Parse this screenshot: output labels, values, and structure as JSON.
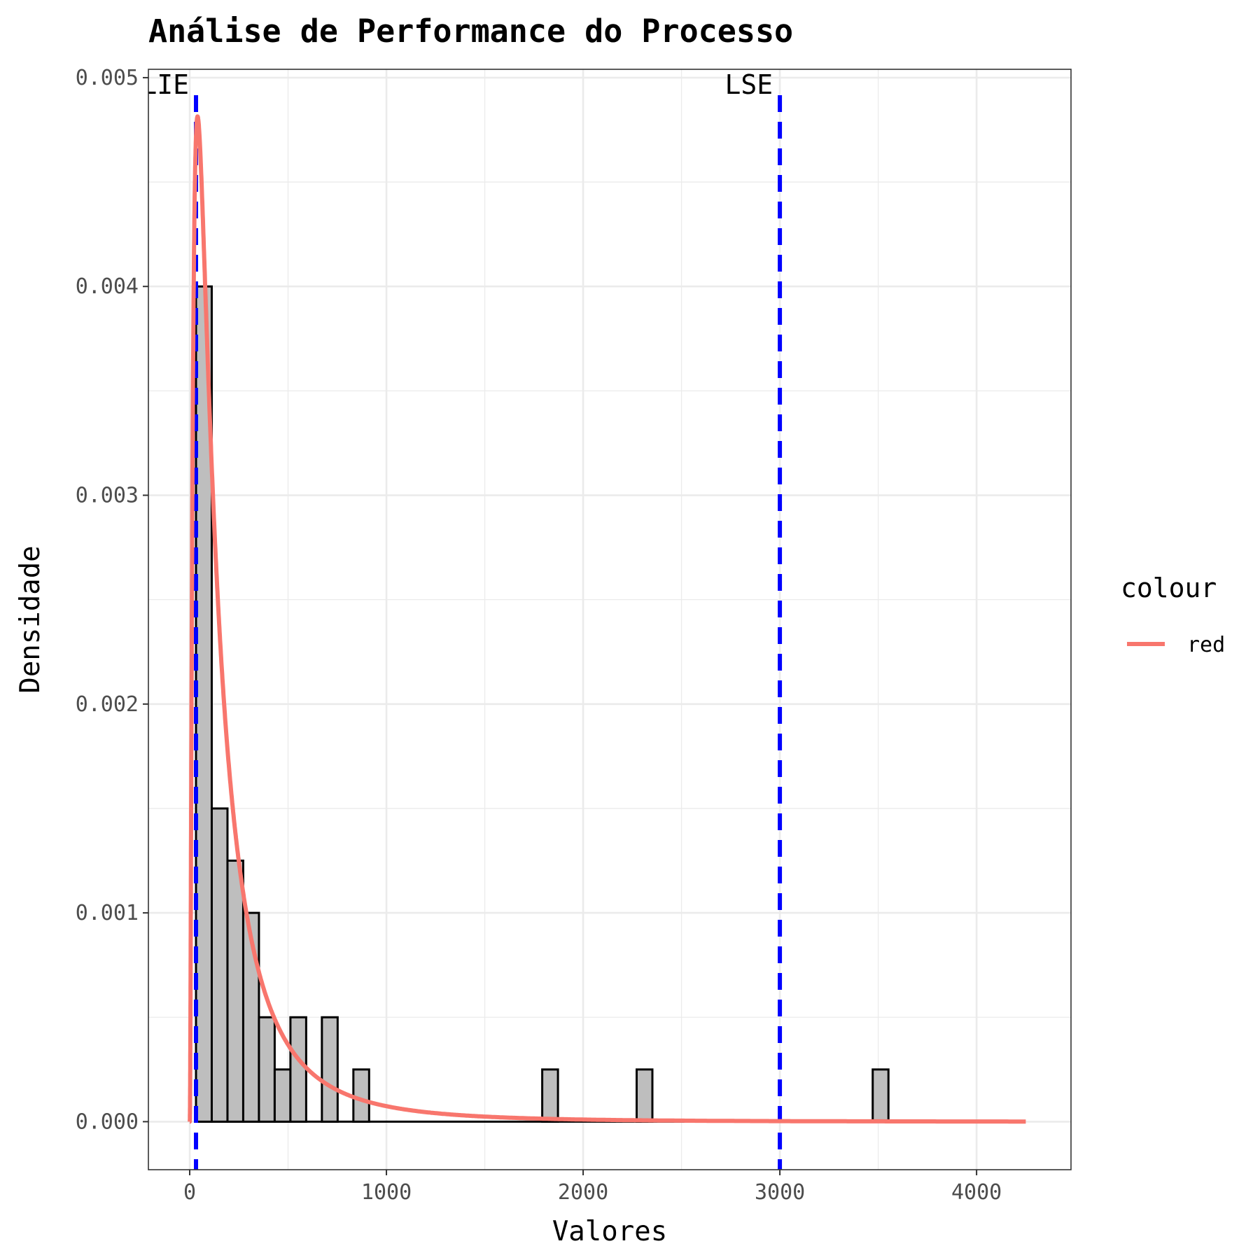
{
  "chart_data": {
    "type": "bar",
    "title": "Análise de Performance do Processo",
    "xlabel": "Valores",
    "ylabel": "Densidade",
    "xlim": [
      -210,
      4480
    ],
    "ylim": [
      -0.00023,
      0.00504
    ],
    "x_ticks": [
      0,
      1000,
      2000,
      3000,
      4000
    ],
    "x_tick_labels": [
      "0",
      "1000",
      "2000",
      "3000",
      "4000"
    ],
    "y_ticks": [
      0,
      0.001,
      0.002,
      0.003,
      0.004,
      0.005
    ],
    "y_tick_labels": [
      "0.000",
      "0.001",
      "0.002",
      "0.003",
      "0.004",
      "0.005"
    ],
    "grid": true,
    "histogram": {
      "binwidth": 80,
      "bins": [
        {
          "start": 32,
          "end": 112,
          "density": 0.004
        },
        {
          "start": 112,
          "end": 192,
          "density": 0.0015
        },
        {
          "start": 192,
          "end": 272,
          "density": 0.00125
        },
        {
          "start": 272,
          "end": 352,
          "density": 0.001
        },
        {
          "start": 352,
          "end": 432,
          "density": 0.0005
        },
        {
          "start": 432,
          "end": 512,
          "density": 0.00025
        },
        {
          "start": 512,
          "end": 592,
          "density": 0.0005
        },
        {
          "start": 672,
          "end": 752,
          "density": 0.0005
        },
        {
          "start": 832,
          "end": 912,
          "density": 0.00025
        },
        {
          "start": 1792,
          "end": 1872,
          "density": 0.00025
        },
        {
          "start": 2272,
          "end": 2352,
          "density": 0.00025
        },
        {
          "start": 3472,
          "end": 3552,
          "density": 0.00025
        }
      ],
      "baseline_range": [
        32,
        3552
      ],
      "fill": "#BEBEBE",
      "stroke": "#000000"
    },
    "density_curve": {
      "distribution": "lognormal",
      "meanlog": 4.93,
      "sdlog": 1.115,
      "x_range": [
        0,
        4250
      ],
      "color": "#F8766D",
      "legend_name": "red"
    },
    "spec_lines": [
      {
        "label": "LIE",
        "value": 32,
        "color": "#0000FF"
      },
      {
        "label": "LSE",
        "value": 3000,
        "color": "#0000FF"
      }
    ],
    "legend": {
      "title": "colour",
      "entries": [
        "red"
      ],
      "placement": "right"
    }
  }
}
